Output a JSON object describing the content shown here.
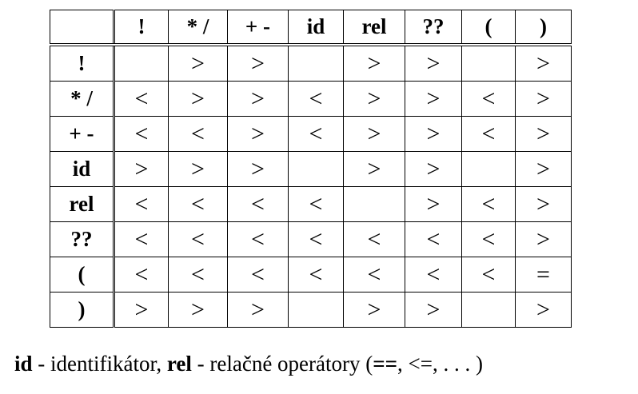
{
  "table": {
    "corner": "",
    "columns": [
      "!",
      "* /",
      "+ -",
      "id",
      "rel",
      "??",
      "(",
      ")"
    ],
    "rows": [
      {
        "label": "!",
        "cells": [
          "",
          ">",
          ">",
          "",
          ">",
          ">",
          "",
          ">"
        ]
      },
      {
        "label": "* /",
        "cells": [
          "<",
          ">",
          ">",
          "<",
          ">",
          ">",
          "<",
          ">"
        ]
      },
      {
        "label": "+ -",
        "cells": [
          "<",
          "<",
          ">",
          "<",
          ">",
          ">",
          "<",
          ">"
        ]
      },
      {
        "label": "id",
        "cells": [
          ">",
          ">",
          ">",
          "",
          ">",
          ">",
          "",
          ">"
        ]
      },
      {
        "label": "rel",
        "cells": [
          "<",
          "<",
          "<",
          "<",
          "",
          ">",
          "<",
          ">"
        ]
      },
      {
        "label": "??",
        "cells": [
          "<",
          "<",
          "<",
          "<",
          "<",
          "<",
          "<",
          ">"
        ]
      },
      {
        "label": "(",
        "cells": [
          "<",
          "<",
          "<",
          "<",
          "<",
          "<",
          "<",
          "="
        ]
      },
      {
        "label": ")",
        "cells": [
          ">",
          ">",
          ">",
          "",
          ">",
          ">",
          "",
          ">"
        ]
      }
    ]
  },
  "caption": {
    "term1": "id",
    "desc1": " - identifikátor, ",
    "term2": "rel",
    "desc2": " - relačné operátory (",
    "op1": "==",
    "sep1": ", ",
    "op2": "<=",
    "sep2": ", . . . )"
  }
}
